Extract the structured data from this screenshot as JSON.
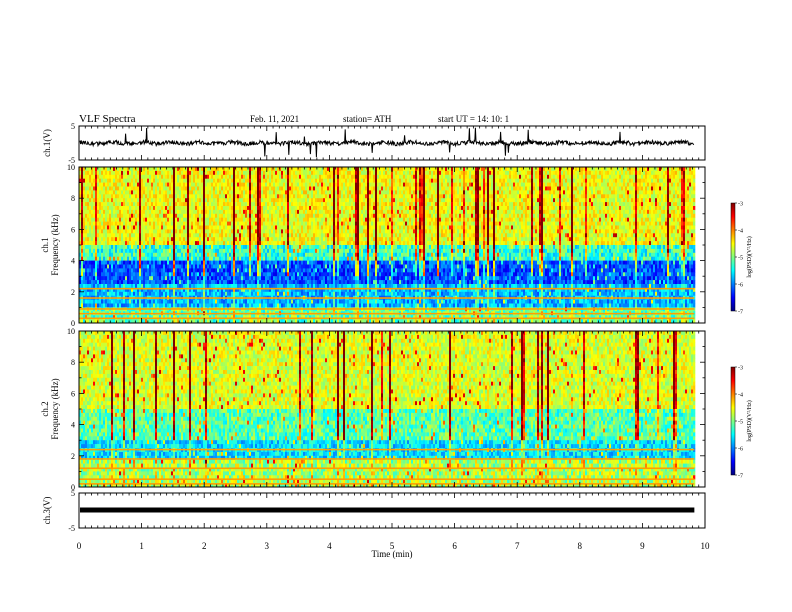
{
  "header": {
    "title": "VLF Spectra",
    "date": "Feb. 11, 2021",
    "station": "station= ATH",
    "start": "start  UT =   14: 10: 1"
  },
  "colors": {
    "spectrogram_scale": [
      "#00007f",
      "#0000ff",
      "#0080ff",
      "#00ffff",
      "#80ff80",
      "#ffff00",
      "#ff8000",
      "#ff0000",
      "#7f0000"
    ],
    "trace": "#000000"
  },
  "chart_data": [
    {
      "type": "line",
      "name": "ch1-waveform",
      "ylabel": "ch.1(V)",
      "ylim": [
        -5,
        5
      ],
      "y_ticks": [
        "5",
        "-5"
      ],
      "xlim": [
        0,
        10
      ],
      "baseline": 0
    },
    {
      "type": "heatmap",
      "name": "ch1-spectrogram",
      "ylabel": "ch.1\nFrequency (kHz)",
      "ylim": [
        0,
        10
      ],
      "y_ticks": [
        "10",
        "8",
        "6",
        "4",
        "2",
        "0"
      ],
      "xlim": [
        0,
        10
      ],
      "data_end": 9.83,
      "colorbar": {
        "label": "log(PSD)(V²/Hz)",
        "range": [
          -7,
          -3
        ],
        "ticks": [
          "-3",
          "-4",
          "-5",
          "-6",
          "-7"
        ]
      }
    },
    {
      "type": "heatmap",
      "name": "ch2-spectrogram",
      "ylabel": "ch.2\nFrequency (kHz)",
      "ylim": [
        0,
        10
      ],
      "y_ticks": [
        "10",
        "8",
        "6",
        "4",
        "2",
        "0"
      ],
      "xlim": [
        0,
        10
      ],
      "data_end": 9.83,
      "colorbar": {
        "label": "log(PSD)(V²/Hz)",
        "range": [
          -7,
          -3
        ],
        "ticks": [
          "-3",
          "-4",
          "-5",
          "-6",
          "-7"
        ]
      }
    },
    {
      "type": "line",
      "name": "ch3-waveform",
      "ylabel": "ch.3(V)",
      "ylim": [
        -5,
        5
      ],
      "y_ticks": [
        "5",
        "-5"
      ],
      "xlim": [
        0,
        10
      ],
      "baseline": 0
    }
  ],
  "x_axis": {
    "label": "Time  (min)",
    "ticks": [
      "0",
      "1",
      "2",
      "3",
      "4",
      "5",
      "6",
      "7",
      "8",
      "9",
      "10"
    ]
  }
}
